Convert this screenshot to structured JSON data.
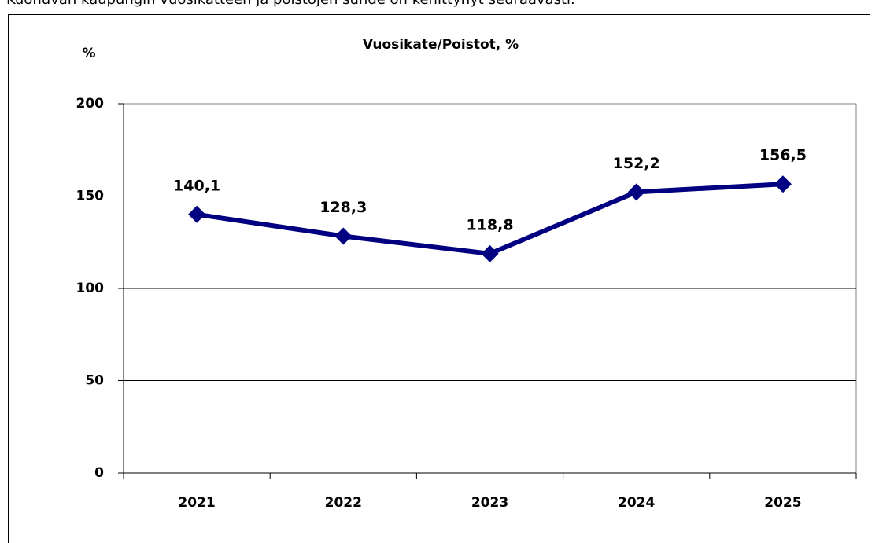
{
  "caption": "Kuohuvan kaupungin vuosikatteen ja poistojen suhde on kehittynyt seuraavasti.",
  "chart_data": {
    "type": "line",
    "title": "Vuosikate/Poistot, %",
    "y_label": "%",
    "categories": [
      "2021",
      "2022",
      "2023",
      "2024",
      "2025"
    ],
    "series": [
      {
        "name": "Vuosikate/Poistot",
        "color": "#000080",
        "values": [
          140.1,
          128.3,
          118.8,
          152.2,
          156.5
        ],
        "value_labels": [
          "140,1",
          "128,3",
          "118,8",
          "152,2",
          "156,5"
        ]
      }
    ],
    "ylim": [
      0,
      200
    ],
    "yticks": [
      0,
      50,
      100,
      150,
      200
    ],
    "grid": true
  }
}
